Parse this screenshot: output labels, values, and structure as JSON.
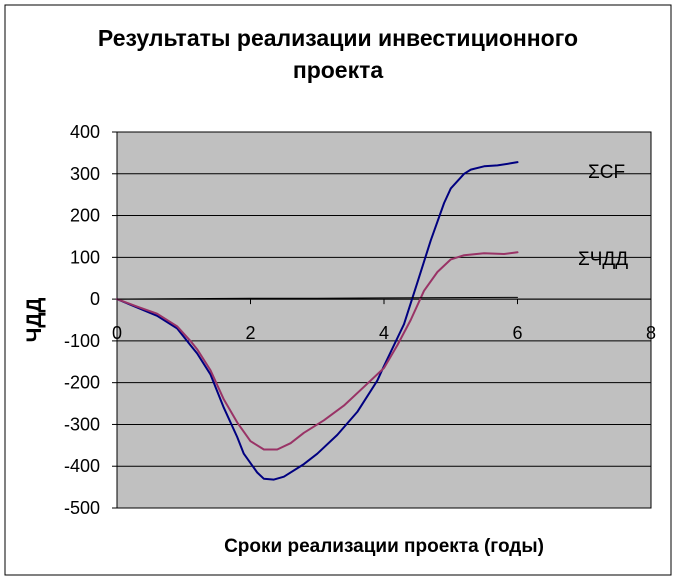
{
  "chart_data": {
    "type": "line",
    "title_line1": "Результаты реализации инвестиционного",
    "title_line2": "проекта",
    "xlabel": "Сроки реализации проекта (годы)",
    "ylabel": "ЧДД",
    "xlim": [
      0,
      8
    ],
    "ylim": [
      -500,
      400
    ],
    "x_ticks": [
      "0",
      "2",
      "4",
      "6",
      "8"
    ],
    "y_ticks": [
      "400",
      "300",
      "200",
      "100",
      "0",
      "-100",
      "-200",
      "-300",
      "-400",
      "-500"
    ],
    "grid": true,
    "colors": {
      "plot_background": "#c0c0c0",
      "frame": "#000000"
    },
    "series": [
      {
        "name": "ΣCF",
        "color": "#000080",
        "points": [
          [
            0,
            0
          ],
          [
            0.3,
            -20
          ],
          [
            0.6,
            -40
          ],
          [
            0.9,
            -70
          ],
          [
            1.1,
            -110
          ],
          [
            1.2,
            -130
          ],
          [
            1.4,
            -180
          ],
          [
            1.6,
            -260
          ],
          [
            1.8,
            -330
          ],
          [
            1.9,
            -370
          ],
          [
            2.1,
            -415
          ],
          [
            2.2,
            -430
          ],
          [
            2.35,
            -432
          ],
          [
            2.5,
            -425
          ],
          [
            2.8,
            -395
          ],
          [
            3.0,
            -370
          ],
          [
            3.3,
            -325
          ],
          [
            3.6,
            -270
          ],
          [
            3.9,
            -195
          ],
          [
            4.0,
            -160
          ],
          [
            4.3,
            -60
          ],
          [
            4.5,
            40
          ],
          [
            4.7,
            140
          ],
          [
            4.9,
            230
          ],
          [
            5.0,
            265
          ],
          [
            5.2,
            300
          ],
          [
            5.3,
            310
          ],
          [
            5.5,
            318
          ],
          [
            5.7,
            320
          ],
          [
            5.9,
            325
          ],
          [
            6.0,
            328
          ]
        ]
      },
      {
        "name": "ΣЧДД",
        "color": "#993366",
        "points": [
          [
            0,
            0
          ],
          [
            0.3,
            -18
          ],
          [
            0.6,
            -35
          ],
          [
            0.9,
            -65
          ],
          [
            1.1,
            -100
          ],
          [
            1.2,
            -120
          ],
          [
            1.4,
            -170
          ],
          [
            1.6,
            -240
          ],
          [
            1.8,
            -295
          ],
          [
            2.0,
            -340
          ],
          [
            2.2,
            -360
          ],
          [
            2.4,
            -360
          ],
          [
            2.6,
            -345
          ],
          [
            2.8,
            -320
          ],
          [
            3.1,
            -290
          ],
          [
            3.4,
            -255
          ],
          [
            3.7,
            -210
          ],
          [
            4.0,
            -165
          ],
          [
            4.2,
            -110
          ],
          [
            4.4,
            -50
          ],
          [
            4.6,
            20
          ],
          [
            4.8,
            65
          ],
          [
            5.0,
            95
          ],
          [
            5.2,
            105
          ],
          [
            5.5,
            110
          ],
          [
            5.8,
            108
          ],
          [
            6.0,
            112
          ]
        ]
      },
      {
        "name": "",
        "color": "#000000",
        "points": [
          [
            0,
            0
          ],
          [
            2,
            2
          ],
          [
            3,
            2
          ],
          [
            4,
            3
          ],
          [
            6,
            4
          ]
        ]
      }
    ],
    "series_labels": [
      "ΣCF",
      "ΣЧДД"
    ]
  }
}
